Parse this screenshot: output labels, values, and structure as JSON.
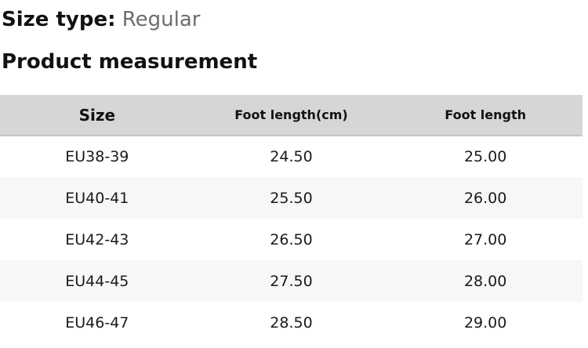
{
  "headings": {
    "size_type_label": "Size type:",
    "size_type_value": "Regular",
    "section_title": "Product measurement"
  },
  "table": {
    "columns": [
      "Size",
      "Foot length(cm)",
      "Foot length"
    ],
    "rows": [
      [
        "EU38-39",
        "24.50",
        "25.00"
      ],
      [
        "EU40-41",
        "25.50",
        "26.00"
      ],
      [
        "EU42-43",
        "26.50",
        "27.00"
      ],
      [
        "EU44-45",
        "27.50",
        "28.00"
      ],
      [
        "EU46-47",
        "28.50",
        "29.00"
      ]
    ]
  },
  "colors": {
    "header_bg": "#d6d6d6",
    "row_alt_bg": "#f7f7f7",
    "heading_text": "#111111",
    "secondary_text": "#6d6d6d"
  }
}
